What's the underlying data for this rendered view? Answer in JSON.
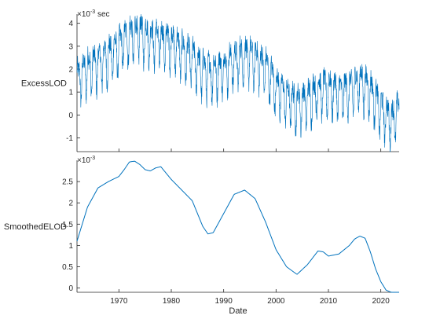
{
  "colors": {
    "line": "#0072BD",
    "axis": "#262626"
  },
  "chart_data": [
    {
      "type": "line",
      "panel": "top",
      "ylabel": "ExcessLOD",
      "exponent_base": "×10",
      "exponent_power": "-3",
      "unit": "sec",
      "xlim": [
        1962,
        2023.5
      ],
      "ylim": [
        -1.6,
        4.4
      ],
      "yticks": [
        -1,
        0,
        1,
        2,
        3,
        4
      ],
      "series": [
        {
          "x": [
            1962,
            1964,
            1966,
            1968,
            1970,
            1972,
            1974,
            1976,
            1978,
            1980,
            1982,
            1984,
            1986,
            1988,
            1990,
            1992,
            1994,
            1996,
            1998,
            2000,
            2002,
            2004,
            2006,
            2008,
            2010,
            2012,
            2014,
            2016,
            2018,
            2020,
            2022,
            2023.5
          ],
          "values": [
            1.5,
            2.0,
            2.2,
            2.5,
            2.9,
            3.4,
            3.5,
            3.3,
            3.2,
            3.1,
            2.7,
            2.4,
            1.9,
            1.8,
            2.0,
            2.3,
            2.5,
            2.4,
            2.0,
            1.2,
            0.7,
            0.4,
            0.6,
            1.0,
            1.1,
            0.9,
            1.0,
            1.4,
            1.0,
            0.2,
            -0.3,
            0.1
          ],
          "annual_amplitude": [
            0.7,
            0.75,
            0.8,
            0.8,
            0.8,
            0.8,
            0.8,
            0.8,
            0.8,
            0.8,
            0.8,
            0.8,
            0.8,
            0.8,
            0.8,
            0.8,
            0.8,
            0.8,
            0.8,
            0.8,
            0.8,
            0.8,
            0.8,
            0.8,
            0.8,
            0.8,
            0.8,
            0.8,
            0.8,
            0.8,
            0.8,
            0.8
          ]
        }
      ]
    },
    {
      "type": "line",
      "panel": "bottom",
      "ylabel": "SmoothedELOD",
      "xlabel": "Date",
      "exponent_base": "×10",
      "exponent_power": "-3",
      "xlim": [
        1962,
        2023.5
      ],
      "ylim": [
        -0.1,
        3.0
      ],
      "yticks": [
        0,
        0.5,
        1,
        1.5,
        2,
        2.5
      ],
      "xticks": [
        1970,
        1980,
        1990,
        2000,
        2010,
        2020
      ],
      "series": [
        {
          "x": [
            1962,
            1964,
            1966,
            1968,
            1970,
            1971,
            1972,
            1973,
            1974,
            1975,
            1976,
            1977,
            1978,
            1979,
            1980,
            1982,
            1984,
            1986,
            1987,
            1988,
            1990,
            1992,
            1994,
            1996,
            1998,
            2000,
            2002,
            2004,
            2006,
            2008,
            2009,
            2010,
            2012,
            2014,
            2015,
            2016,
            2017,
            2018,
            2019,
            2020,
            2021,
            2022,
            2023.5
          ],
          "values": [
            1.1,
            1.9,
            2.35,
            2.5,
            2.62,
            2.78,
            2.96,
            2.98,
            2.9,
            2.78,
            2.75,
            2.82,
            2.85,
            2.7,
            2.55,
            2.3,
            2.05,
            1.45,
            1.27,
            1.3,
            1.75,
            2.2,
            2.3,
            2.1,
            1.55,
            0.9,
            0.5,
            0.32,
            0.55,
            0.87,
            0.85,
            0.75,
            0.8,
            1.0,
            1.15,
            1.22,
            1.17,
            0.85,
            0.45,
            0.15,
            -0.05,
            -0.1,
            -0.1
          ]
        }
      ]
    }
  ]
}
